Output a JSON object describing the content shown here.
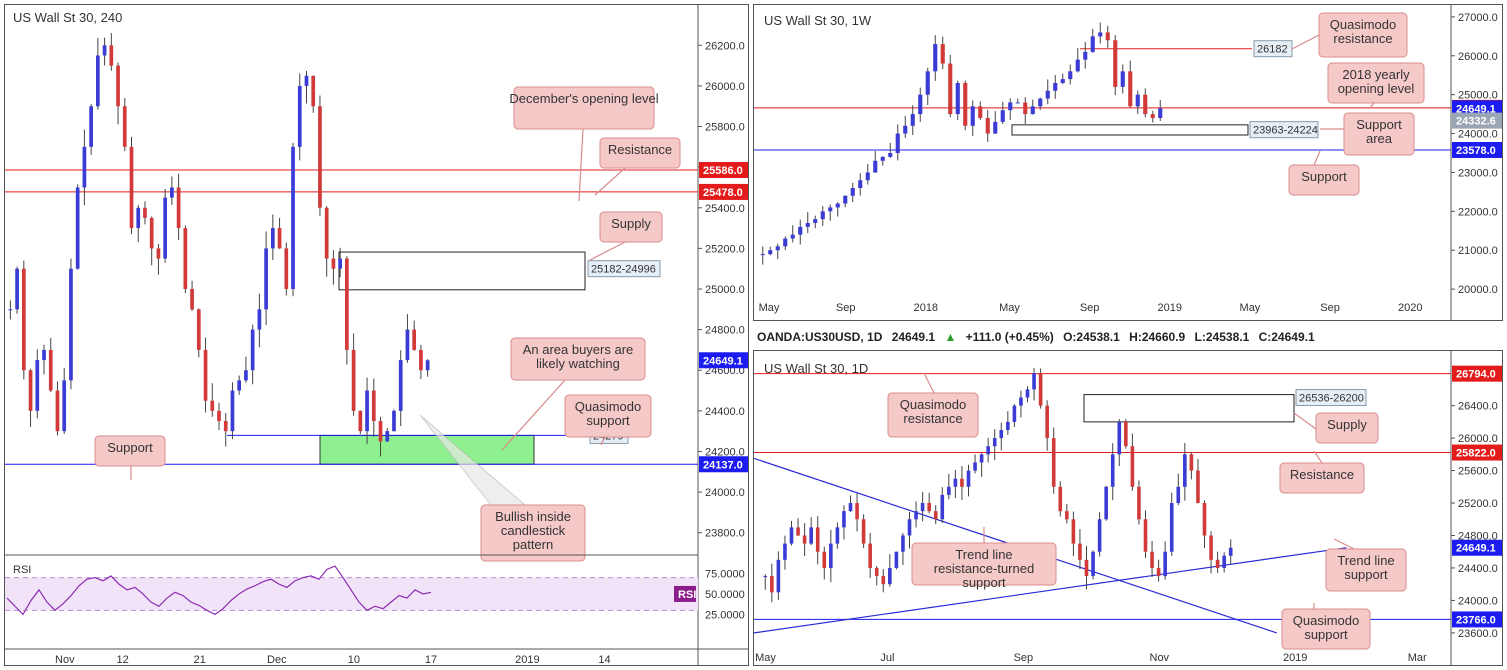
{
  "colors": {
    "bull": "#3b3bd6",
    "bear": "#d23a3a",
    "ann_fill": "#f6c9c9",
    "ann_stroke": "#d98b8b",
    "green_zone": "#8ef08e",
    "red_tag": "#e31b1b",
    "blue_tag": "#1c1cf0",
    "grey_tag": "#9aa6b5",
    "rsi_tag": "#8b1e8b",
    "rsi_bg": "#f1e3f8",
    "rsi_line": "#8e2ab0"
  },
  "ohlc": {
    "symbol": "OANDA:US30USD, 1D",
    "last": "24649.1",
    "change": "+111.0 (+0.45%)",
    "o": "O:24538.1",
    "h": "H:24660.9",
    "l": "L:24538.1",
    "c": "C:24649.1",
    "up_icon": "triangle-up-icon"
  },
  "chart_data": [
    {
      "id": "h4",
      "type": "candlestick",
      "title": "US Wall St 30, 240",
      "ylim": [
        23700,
        26300
      ],
      "yticks": [
        "26200.0",
        "26000.0",
        "25800.0",
        "25600.0",
        "25400.0",
        "25200.0",
        "25000.0",
        "24800.0",
        "24600.0",
        "24400.0",
        "24200.0",
        "24000.0",
        "23800.0"
      ],
      "ytick_values": [
        26200,
        26000,
        25800,
        25600,
        25400,
        25200,
        25000,
        24800,
        24600,
        24400,
        24200,
        24000,
        23800
      ],
      "xticks": [
        "Nov",
        "12",
        "21",
        "Dec",
        "10",
        "17",
        "2019",
        "14"
      ],
      "xtick_index": [
        9,
        18,
        30,
        42,
        54,
        66,
        81,
        93
      ],
      "bars": 96,
      "series": [
        24900,
        25100,
        24600,
        24400,
        24650,
        24700,
        24500,
        24300,
        24550,
        25100,
        25500,
        25700,
        25900,
        26150,
        26200,
        26100,
        25900,
        25700,
        25300,
        25400,
        25350,
        25200,
        25150,
        25450,
        25500,
        25300,
        25000,
        24900,
        24700,
        24450,
        24400,
        24350,
        24300,
        24500,
        24550,
        24600,
        24800,
        24900,
        25200,
        25300,
        25200,
        25000,
        25700,
        26000,
        26050,
        25900,
        25400,
        25150,
        25100,
        25150,
        24700,
        24400,
        24300,
        24500,
        24350,
        24250,
        24300,
        24400,
        24650,
        24800,
        24700,
        24600,
        24649.1
      ],
      "hlines": [
        {
          "value": 25586,
          "label": "25586.0",
          "color": "#e31b1b"
        },
        {
          "value": 25478,
          "label": "25478.0",
          "color": "#e31b1b"
        },
        {
          "value": 24137,
          "label": "24137.0",
          "color": "#1c1cf0"
        },
        {
          "value": 24279,
          "label": "24279",
          "color": "#1c1cf0"
        }
      ],
      "last_tag": {
        "value": 24649.1,
        "label": "24649.1"
      },
      "zones": [
        {
          "name": "supply",
          "top": 25182,
          "bottom": 24996,
          "label": "25182-24996",
          "fill": "none"
        },
        {
          "name": "demand",
          "top": 24279,
          "bottom": 24137,
          "label": "",
          "fill": "green"
        }
      ],
      "annotations": [
        "December's opening level",
        "Resistance",
        "Supply",
        "An area buyers are likely watching",
        "Quasimodo support",
        "Support",
        "Bullish inside candlestick pattern"
      ],
      "rsi": {
        "label": "RSI",
        "tag": "RSI",
        "yticks": [
          "75.0000",
          "50.0000",
          "25.0000"
        ],
        "ytick_values": [
          75,
          50,
          25
        ],
        "band": [
          70,
          30
        ],
        "values": [
          45,
          35,
          25,
          42,
          55,
          40,
          30,
          38,
          48,
          60,
          68,
          70,
          66,
          72,
          62,
          55,
          58,
          50,
          40,
          35,
          45,
          52,
          48,
          40,
          36,
          30,
          25,
          32,
          42,
          50,
          56,
          60,
          65,
          68,
          62,
          58,
          66,
          70,
          72,
          68,
          80,
          84,
          70,
          55,
          40,
          30,
          35,
          32,
          40,
          48,
          45,
          55,
          50,
          52
        ]
      }
    },
    {
      "id": "w1",
      "type": "candlestick",
      "title": "US Wall St 30, 1W",
      "ylim": [
        19900,
        27100
      ],
      "yticks": [
        "27000.0",
        "26000.0",
        "25000.0",
        "24000.0",
        "23000.0",
        "22000.0",
        "21000.0",
        "20000.0"
      ],
      "ytick_values": [
        27000,
        26000,
        25000,
        24000,
        23000,
        22000,
        21000,
        20000
      ],
      "xticks": [
        "May",
        "Sep",
        "2018",
        "May",
        "Sep",
        "2019",
        "May",
        "Sep",
        "2020"
      ],
      "xtick_pos": [
        0,
        0.11,
        0.225,
        0.345,
        0.46,
        0.575,
        0.69,
        0.805,
        0.92
      ],
      "series": [
        20900,
        21000,
        21100,
        21300,
        21400,
        21600,
        21700,
        21800,
        22000,
        22100,
        22200,
        22400,
        22600,
        22800,
        23000,
        23300,
        23400,
        23500,
        24000,
        24200,
        24500,
        25000,
        25600,
        26300,
        25800,
        24500,
        25300,
        24200,
        24700,
        24400,
        24000,
        24300,
        24600,
        24800,
        24800,
        24500,
        24700,
        24900,
        25100,
        25300,
        25400,
        25600,
        25900,
        26100,
        26500,
        26600,
        26400,
        25200,
        25600,
        24700,
        25000,
        24500,
        24400,
        24649
      ],
      "hlines": [
        {
          "value": 26182,
          "label": "26182",
          "color": "#e31b1b",
          "partial": true
        },
        {
          "value": 24660,
          "label": "24660.0",
          "color": "#e31b1b"
        },
        {
          "value": 23578,
          "label": "23578.0",
          "color": "#1c1cf0"
        }
      ],
      "tags": [
        {
          "value": 24649.1,
          "label": "24649.1",
          "color": "#1c1cf0"
        },
        {
          "value": 24332.6,
          "label": "24332.6",
          "color": "#9aa6b5"
        }
      ],
      "zones": [
        {
          "name": "support-area",
          "top": 24224,
          "bottom": 23963,
          "label": "23963-24224"
        }
      ],
      "annotations": [
        "Quasimodo resistance",
        "2018 yearly opening level",
        "Support area",
        "Support"
      ]
    },
    {
      "id": "d1",
      "type": "candlestick",
      "title": "US Wall St 30, 1D",
      "ylim": [
        23500,
        26950
      ],
      "yticks": [
        "26400.0",
        "26000.0",
        "25600.0",
        "25200.0",
        "24800.0",
        "24400.0",
        "24000.0",
        "23600.0"
      ],
      "ytick_values": [
        26400,
        26000,
        25600,
        25200,
        24800,
        24400,
        24000,
        23600
      ],
      "xticks": [
        "May",
        "Jul",
        "Sep",
        "Nov",
        "2019",
        "Mar"
      ],
      "xtick_pos": [
        0.005,
        0.18,
        0.375,
        0.57,
        0.765,
        0.94
      ],
      "series": [
        24300,
        24100,
        24500,
        24700,
        24900,
        24800,
        24700,
        24900,
        24600,
        24400,
        24700,
        24900,
        25100,
        25200,
        25000,
        24700,
        24400,
        24300,
        24200,
        24400,
        24600,
        24800,
        25000,
        25100,
        25200,
        25100,
        25000,
        25300,
        25400,
        25500,
        25400,
        25600,
        25700,
        25800,
        25900,
        26000,
        26100,
        26200,
        26400,
        26500,
        26600,
        26800,
        26400,
        26000,
        25400,
        25100,
        25000,
        24700,
        24500,
        24300,
        24600,
        25000,
        25400,
        25800,
        26200,
        25900,
        25400,
        25000,
        24600,
        24400,
        24300,
        24600,
        25200,
        25400,
        25800,
        25600,
        25200,
        24800,
        24500,
        24400,
        24550,
        24649
      ],
      "hlines": [
        {
          "value": 26794,
          "label": "26794.0",
          "color": "#e31b1b"
        },
        {
          "value": 25822,
          "label": "25822.0",
          "color": "#e31b1b"
        },
        {
          "value": 23766,
          "label": "23766.0",
          "color": "#1c1cf0"
        }
      ],
      "tags": [
        {
          "value": 24649.1,
          "label": "24649.1",
          "color": "#1c1cf0"
        }
      ],
      "zones": [
        {
          "name": "supply",
          "top": 26536,
          "bottom": 26200,
          "label": "26536-26200"
        }
      ],
      "trendlines": [
        {
          "from": [
            0,
            25750
          ],
          "to": [
            0.75,
            23600
          ]
        },
        {
          "from": [
            0,
            23600
          ],
          "to": [
            0.85,
            24650
          ]
        }
      ],
      "annotations": [
        "Quasimodo resistance",
        "Supply",
        "Resistance",
        "Trend line resistance-turned support",
        "Trend line support",
        "Quasimodo support"
      ]
    }
  ]
}
